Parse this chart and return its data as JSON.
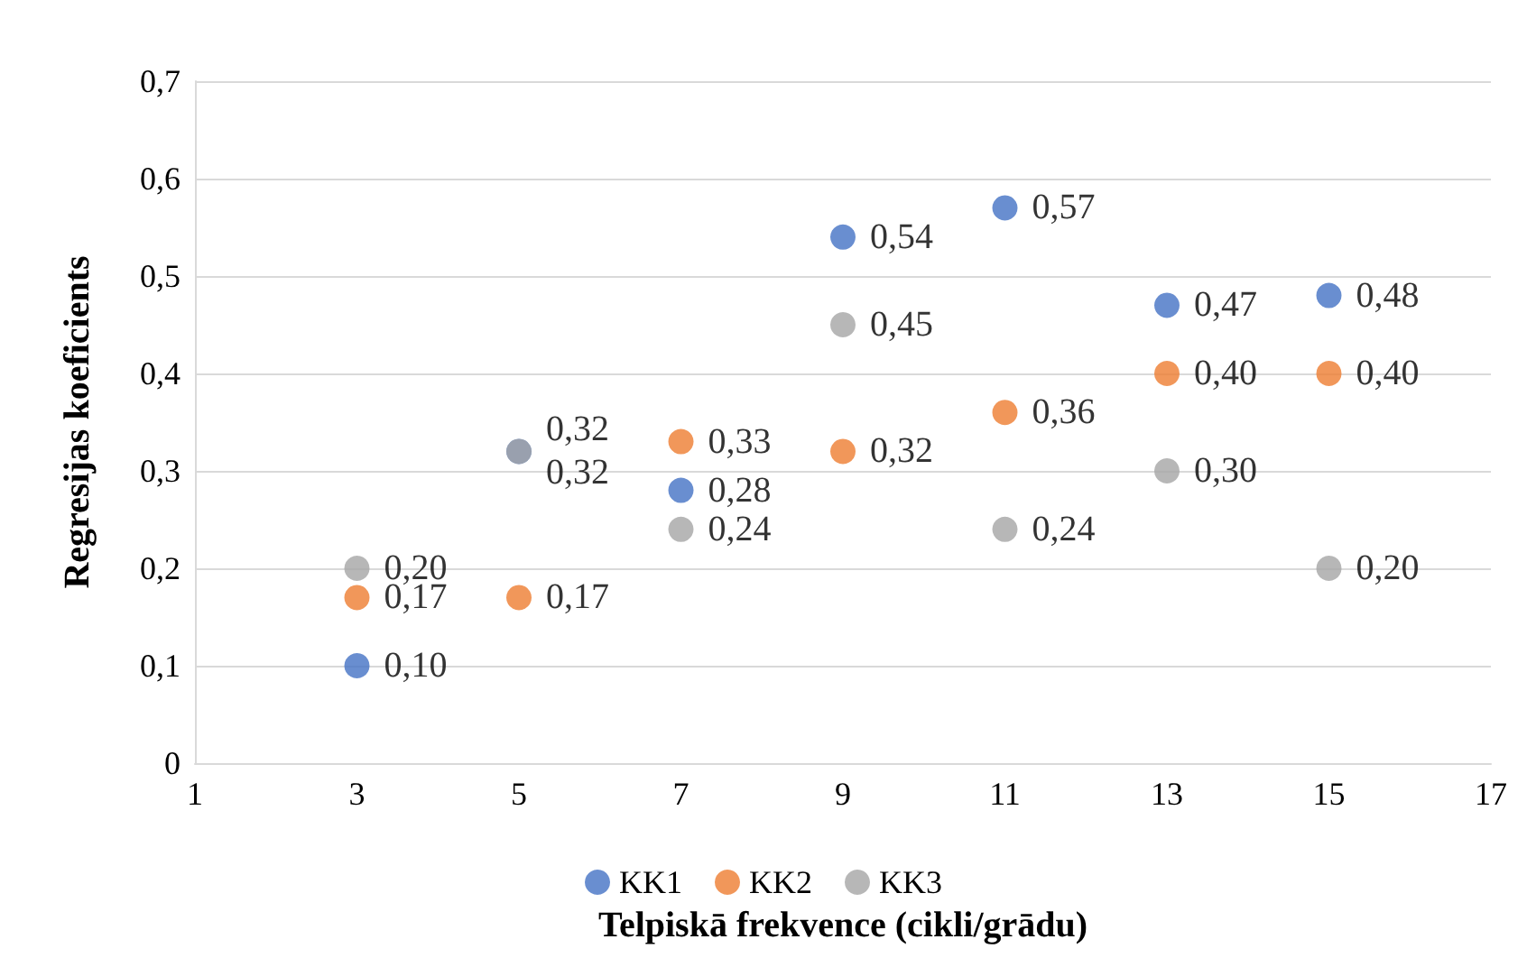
{
  "chart_data": {
    "type": "scatter",
    "xlabel": "Telpiskā frekvence (cikli/grādu)",
    "ylabel": "Regresijas koeficients",
    "x": [
      3,
      5,
      7,
      9,
      11,
      13,
      15
    ],
    "series": [
      {
        "name": "KK1",
        "color": "#4472c4",
        "values": [
          0.1,
          0.32,
          0.28,
          0.54,
          0.57,
          0.47,
          0.48
        ],
        "value_labels": [
          "0,10",
          "0,32",
          "0,28",
          "0,54",
          "0,57",
          "0,47",
          "0,48"
        ]
      },
      {
        "name": "KK2",
        "color": "#ed7d31",
        "values": [
          0.17,
          0.17,
          0.33,
          0.32,
          0.36,
          0.4,
          0.4
        ],
        "value_labels": [
          "0,17",
          "0,17",
          "0,33",
          "0,32",
          "0,36",
          "0,40",
          "0,40"
        ]
      },
      {
        "name": "KK3",
        "color": "#a5a5a5",
        "values": [
          0.2,
          0.32,
          0.24,
          0.45,
          0.24,
          0.3,
          0.2
        ],
        "value_labels": [
          "0,20",
          "0,32",
          "0,24",
          "0,45",
          "0,24",
          "0,30",
          "0,20"
        ]
      }
    ],
    "xlim": [
      1,
      17
    ],
    "xticks": [
      1,
      3,
      5,
      7,
      9,
      11,
      13,
      15,
      17
    ],
    "ylim": [
      0,
      0.7
    ],
    "yticks": [
      0,
      {
        "value": 0.1,
        "label": "0,1"
      },
      {
        "value": 0.2,
        "label": "0,2"
      },
      {
        "value": 0.3,
        "label": "0,3"
      },
      {
        "value": 0.4,
        "label": "0,4"
      },
      {
        "value": 0.5,
        "label": "0,5"
      },
      {
        "value": 0.6,
        "label": "0,6"
      },
      {
        "value": 0.7,
        "label": "0,7"
      }
    ],
    "grid": "y",
    "legend": "bottom",
    "marker": "circle"
  }
}
